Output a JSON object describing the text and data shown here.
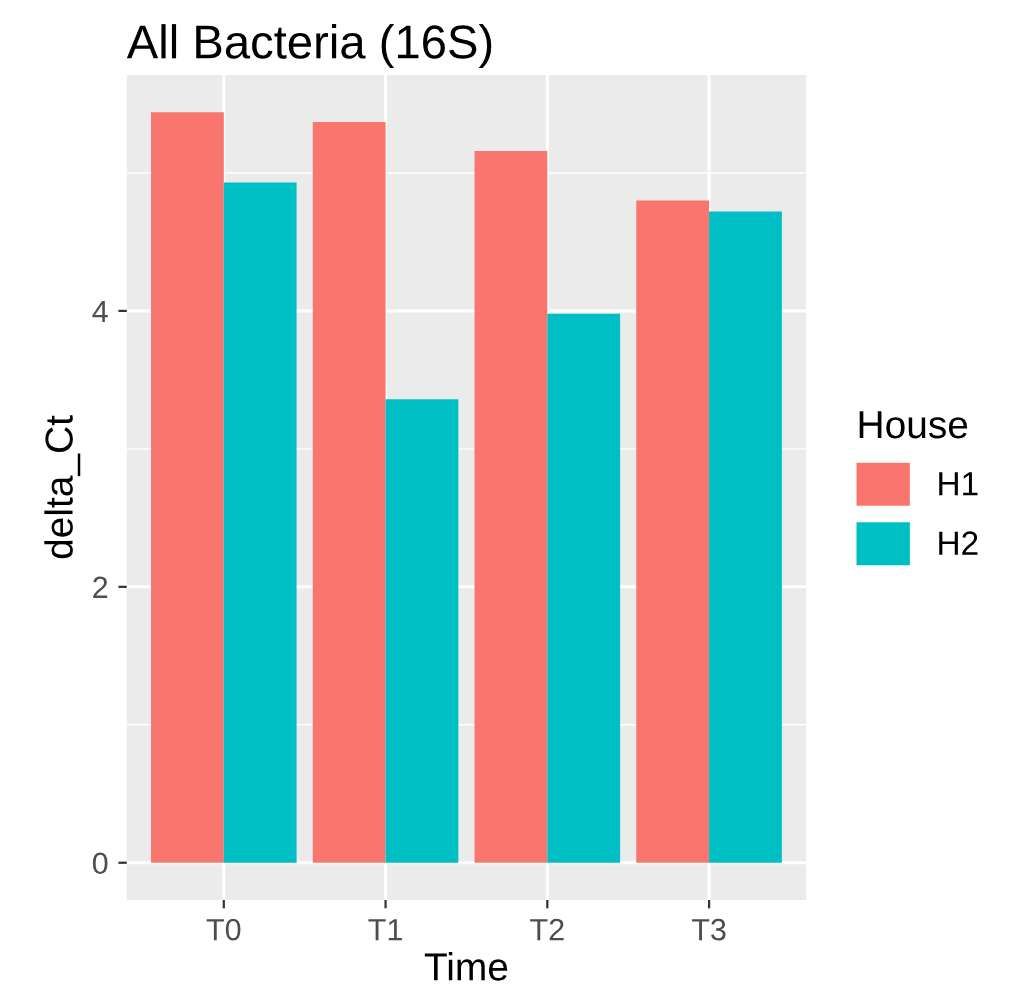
{
  "chart_data": {
    "type": "bar",
    "title": "All Bacteria (16S)",
    "xlabel": "Time",
    "ylabel": "delta_Ct",
    "legend_title": "House",
    "categories": [
      "T0",
      "T1",
      "T2",
      "T3"
    ],
    "series": [
      {
        "name": "H1",
        "color": "#f8766d",
        "values": [
          5.44,
          5.37,
          5.16,
          4.8
        ]
      },
      {
        "name": "H2",
        "color": "#00bfc4",
        "values": [
          4.93,
          3.36,
          3.98,
          4.72
        ]
      }
    ],
    "ylim": [
      -0.27,
      5.71
    ],
    "yticks": [
      0,
      2,
      4
    ],
    "grid": true,
    "legend": "right"
  }
}
